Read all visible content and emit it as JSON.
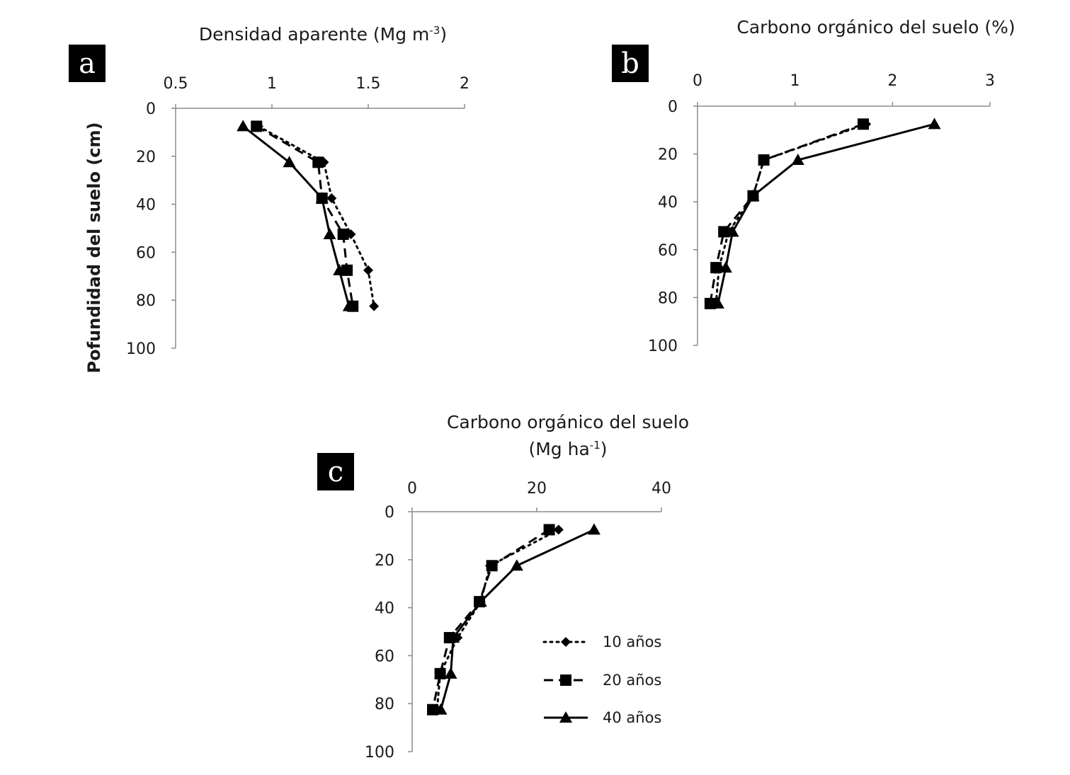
{
  "figure": {
    "legend": {
      "position": "inside panel c, right of the curves",
      "entries": [
        "10 años",
        "20 años",
        "40 años"
      ]
    },
    "styles": {
      "10 años": {
        "dash": "dotted",
        "marker": "diamond",
        "color": "#000000"
      },
      "20 años": {
        "dash": "dashed",
        "marker": "square",
        "color": "#000000"
      },
      "40 años": {
        "dash": "solid",
        "marker": "triangle",
        "color": "#000000"
      }
    }
  },
  "chart_data": [
    {
      "panel": "a",
      "type": "line",
      "title": "Densidad aparente (Mg m-3)",
      "title_main": "Densidad aparente (Mg m",
      "title_sup": "-3",
      "title_end": ")",
      "xlabel": "",
      "ylabel": "Pofundidad del suelo (cm)",
      "xlim": [
        0.5,
        2
      ],
      "ylim": [
        0,
        100
      ],
      "x_axis_position": "top",
      "y_inverted": true,
      "xticks": [
        0.5,
        1,
        1.5,
        2
      ],
      "xtick_labels": [
        "0.5",
        "1",
        "1.5",
        "2"
      ],
      "yticks": [
        0,
        20,
        40,
        60,
        80,
        100
      ],
      "ytick_labels": [
        "0",
        "20",
        "40",
        "60",
        "80",
        "100"
      ],
      "depth": [
        7.5,
        22.5,
        37.5,
        52.5,
        67.5,
        82.5
      ],
      "series": [
        {
          "name": "10 años",
          "values": [
            0.93,
            1.27,
            1.31,
            1.41,
            1.5,
            1.53
          ]
        },
        {
          "name": "20 años",
          "values": [
            0.92,
            1.24,
            1.26,
            1.37,
            1.39,
            1.42
          ]
        },
        {
          "name": "40 años",
          "values": [
            0.85,
            1.09,
            1.26,
            1.3,
            1.35,
            1.4
          ]
        }
      ]
    },
    {
      "panel": "b",
      "type": "line",
      "title": "Carbono orgánico del suelo (%)",
      "title_main": "Carbono orgánico del suelo (%)",
      "title_sup": "",
      "title_end": "",
      "xlabel": "",
      "ylabel": "",
      "xlim": [
        0,
        3
      ],
      "ylim": [
        0,
        100
      ],
      "x_axis_position": "top",
      "y_inverted": true,
      "xticks": [
        0,
        1,
        2,
        3
      ],
      "xtick_labels": [
        "0",
        "1",
        "2",
        "3"
      ],
      "yticks": [
        0,
        20,
        40,
        60,
        80,
        100
      ],
      "ytick_labels": [
        "0",
        "20",
        "40",
        "60",
        "80",
        "100"
      ],
      "depth": [
        7.5,
        22.5,
        37.5,
        52.5,
        67.5,
        82.5
      ],
      "series": [
        {
          "name": "10 años",
          "values": [
            1.73,
            0.68,
            0.57,
            0.32,
            0.22,
            0.19
          ]
        },
        {
          "name": "20 años",
          "values": [
            1.7,
            0.68,
            0.57,
            0.27,
            0.19,
            0.13
          ]
        },
        {
          "name": "40 años",
          "values": [
            2.43,
            1.03,
            0.57,
            0.36,
            0.29,
            0.21
          ]
        }
      ]
    },
    {
      "panel": "c",
      "type": "line",
      "title": "Carbono orgánico del suelo (Mg ha-1)",
      "title_main": "Carbono orgánico del suelo",
      "title_line2": "(Mg ha",
      "title_sup": "-1",
      "title_end": ")",
      "xlabel": "",
      "ylabel": "",
      "xlim": [
        0,
        40
      ],
      "ylim": [
        0,
        100
      ],
      "x_axis_position": "top",
      "y_inverted": true,
      "xticks": [
        0,
        20,
        40
      ],
      "xtick_labels": [
        "0",
        "20",
        "40"
      ],
      "yticks": [
        0,
        20,
        40,
        60,
        80,
        100
      ],
      "ytick_labels": [
        "0",
        "20",
        "40",
        "60",
        "80",
        "100"
      ],
      "depth": [
        7.5,
        22.5,
        37.5,
        52.5,
        67.5,
        82.5
      ],
      "series": [
        {
          "name": "10 años",
          "values": [
            23.5,
            12.5,
            11.0,
            7.3,
            4.5,
            4.0
          ]
        },
        {
          "name": "20 años",
          "values": [
            22.0,
            12.8,
            10.8,
            6.0,
            4.5,
            3.3
          ]
        },
        {
          "name": "40 años",
          "values": [
            29.2,
            16.8,
            11.0,
            6.6,
            6.2,
            4.6
          ]
        }
      ]
    }
  ]
}
